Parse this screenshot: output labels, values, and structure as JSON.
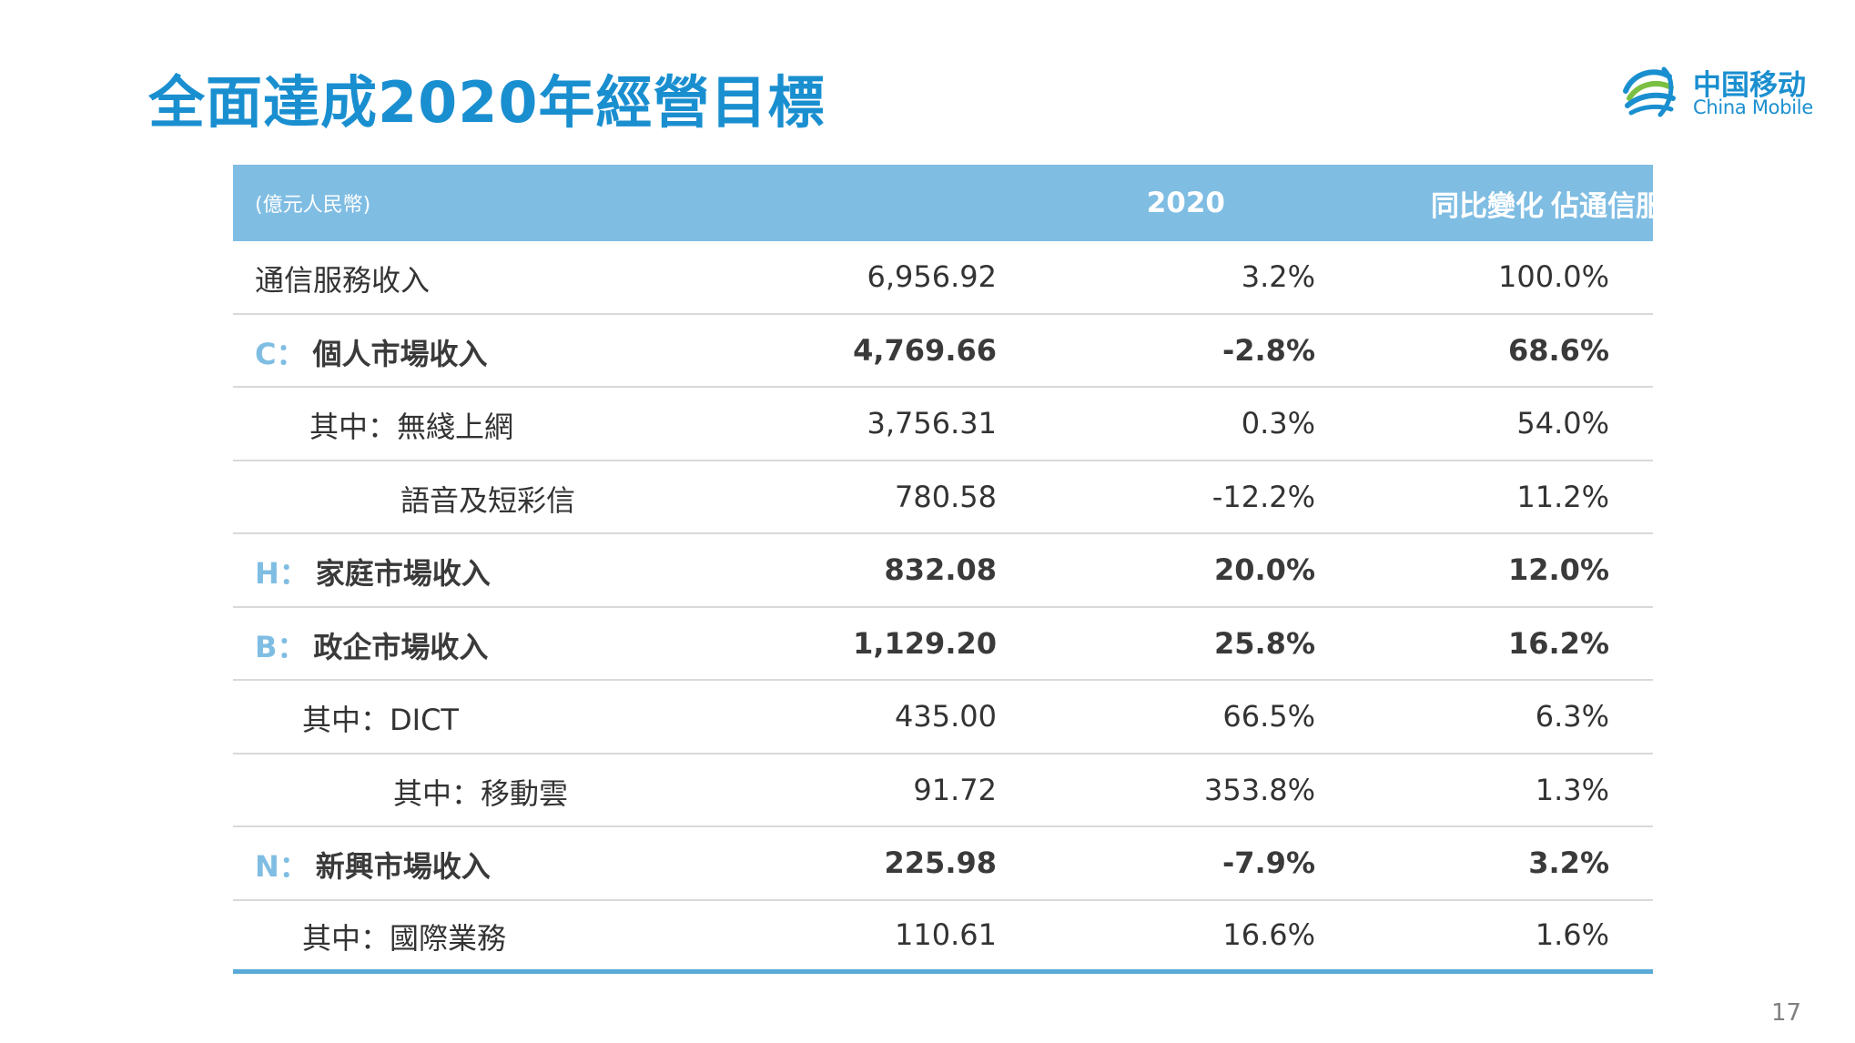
{
  "title": "全面達成2020年經營目標",
  "logo": {
    "cn": "中国移动",
    "en": "China Mobile",
    "brand_color": "#1a8fd0"
  },
  "table": {
    "header": {
      "unit": "(億元人民幣)",
      "col_2020": "2020",
      "col_yoy": "同比變化",
      "col_share": "佔通信服務收入比",
      "bg_color": "#7fbde3"
    },
    "rows": [
      {
        "prefix": "",
        "label": "通信服務收入",
        "v2020": "6,956.92",
        "yoy": "3.2%",
        "share": "100.0%"
      },
      {
        "prefix": "C：",
        "label": "個人市場收入",
        "v2020": "4,769.66",
        "yoy": "-2.8%",
        "share": "68.6%"
      },
      {
        "prefix": "",
        "label": "其中：無綫上網",
        "v2020": "3,756.31",
        "yoy": "0.3%",
        "share": "54.0%"
      },
      {
        "prefix": "",
        "label": "語音及短彩信",
        "v2020": "780.58",
        "yoy": "-12.2%",
        "share": "11.2%"
      },
      {
        "prefix": "H：",
        "label": "家庭市場收入",
        "v2020": "832.08",
        "yoy": "20.0%",
        "share": "12.0%"
      },
      {
        "prefix": "B：",
        "label": "政企市場收入",
        "v2020": "1,129.20",
        "yoy": "25.8%",
        "share": "16.2%"
      },
      {
        "prefix": "",
        "label": "其中：DICT",
        "v2020": "435.00",
        "yoy": "66.5%",
        "share": "6.3%"
      },
      {
        "prefix": "",
        "label": "其中：移動雲",
        "v2020": "91.72",
        "yoy": "353.8%",
        "share": "1.3%"
      },
      {
        "prefix": "N：",
        "label": "新興市場收入",
        "v2020": "225.98",
        "yoy": "-7.9%",
        "share": "3.2%"
      },
      {
        "prefix": "",
        "label": "其中：國際業務",
        "v2020": "110.61",
        "yoy": "16.6%",
        "share": "1.6%"
      }
    ]
  },
  "page_number": "17"
}
